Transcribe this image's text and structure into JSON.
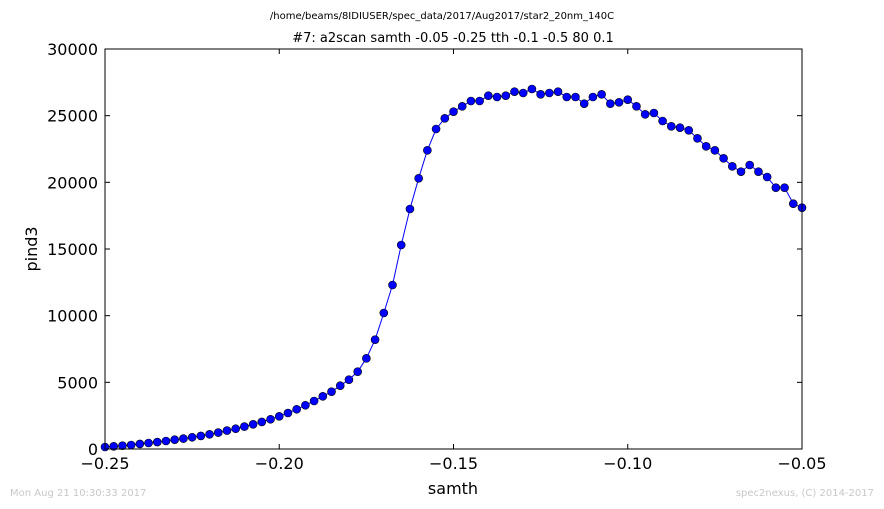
{
  "chart_data": {
    "type": "line",
    "suptitle": "/home/beams/8IDIUSER/spec_data/2017/Aug2017/star2_20nm_140C",
    "title": "#7: a2scan  samth -0.05 -0.25  tth -0.1 -0.5  80 0.1",
    "xlabel": "samth",
    "ylabel": "pind3",
    "xlim": [
      -0.25,
      -0.05
    ],
    "ylim": [
      0,
      30000
    ],
    "xticks": [
      -0.25,
      -0.2,
      -0.15,
      -0.1,
      -0.05
    ],
    "xtick_labels": [
      "−0.25",
      "−0.20",
      "−0.15",
      "−0.10",
      "−0.05"
    ],
    "yticks": [
      0,
      5000,
      10000,
      15000,
      20000,
      25000,
      30000
    ],
    "ytick_labels": [
      "0",
      "5000",
      "10000",
      "15000",
      "20000",
      "25000",
      "30000"
    ],
    "grid": false,
    "line_color": "#0000ff",
    "marker": "circle",
    "series": [
      {
        "x": [
          -0.25,
          -0.2475,
          -0.245,
          -0.2425,
          -0.24,
          -0.2375,
          -0.235,
          -0.2325,
          -0.23,
          -0.2275,
          -0.225,
          -0.2225,
          -0.22,
          -0.2175,
          -0.215,
          -0.2125,
          -0.21,
          -0.2075,
          -0.205,
          -0.2025,
          -0.2,
          -0.1975,
          -0.195,
          -0.1925,
          -0.19,
          -0.1875,
          -0.185,
          -0.1825,
          -0.18,
          -0.1775,
          -0.175,
          -0.1725,
          -0.17,
          -0.1675,
          -0.165,
          -0.1625,
          -0.16,
          -0.1575,
          -0.155,
          -0.1525,
          -0.15,
          -0.1475,
          -0.145,
          -0.1425,
          -0.14,
          -0.1375,
          -0.135,
          -0.1325,
          -0.13,
          -0.1275,
          -0.125,
          -0.1225,
          -0.12,
          -0.1175,
          -0.115,
          -0.1125,
          -0.11,
          -0.1075,
          -0.105,
          -0.1025,
          -0.1,
          -0.0975,
          -0.095,
          -0.0925,
          -0.09,
          -0.0875,
          -0.085,
          -0.0825,
          -0.08,
          -0.0775,
          -0.075,
          -0.0725,
          -0.07,
          -0.0675,
          -0.065,
          -0.0625,
          -0.06,
          -0.0575,
          -0.055,
          -0.0525,
          -0.05
        ],
        "y": [
          150,
          200,
          250,
          300,
          380,
          450,
          520,
          600,
          700,
          780,
          880,
          980,
          1100,
          1230,
          1380,
          1520,
          1680,
          1850,
          2030,
          2230,
          2450,
          2700,
          2980,
          3280,
          3600,
          3950,
          4300,
          4750,
          5200,
          5800,
          6800,
          8200,
          10200,
          12300,
          15300,
          18000,
          20300,
          22400,
          24000,
          24800,
          25300,
          25700,
          26100,
          26100,
          26500,
          26400,
          26500,
          26800,
          26700,
          27000,
          26600,
          26700,
          26800,
          26400,
          26400,
          25900,
          26400,
          26600,
          25900,
          26000,
          26200,
          25700,
          25100,
          25200,
          24600,
          24200,
          24100,
          23900,
          23300,
          22700,
          22400,
          21800,
          21200,
          20800,
          21300,
          20800,
          20400,
          19600,
          19600,
          18400,
          18100
        ]
      }
    ]
  },
  "footer": {
    "timestamp": "Mon Aug 21 10:30:33 2017",
    "credit": "spec2nexus, (C) 2014-2017"
  }
}
